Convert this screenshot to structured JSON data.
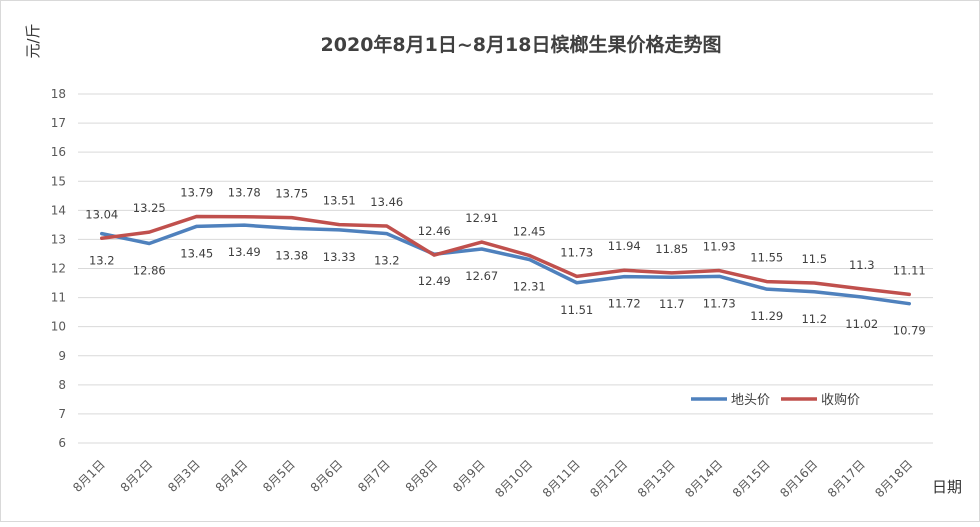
{
  "chart_data": {
    "type": "line",
    "title": "2020年8月1日~8月18日槟榔生果价格走势图",
    "ylabel": "元/斤",
    "xlabel": "日期",
    "ylim": [
      6,
      18
    ],
    "yticks": [
      6,
      7,
      8,
      9,
      10,
      11,
      12,
      13,
      14,
      15,
      16,
      17,
      18
    ],
    "grid": true,
    "legend_position": "bottom-right",
    "categories": [
      "8月1日",
      "8月2日",
      "8月3日",
      "8月4日",
      "8月5日",
      "8月6日",
      "8月7日",
      "8月8日",
      "8月9日",
      "8月10日",
      "8月11日",
      "8月12日",
      "8月13日",
      "8月14日",
      "8月15日",
      "8月16日",
      "8月17日",
      "8月18日"
    ],
    "series": [
      {
        "name": "地头价",
        "color": "#4f81bd",
        "label_position": "below",
        "values": [
          13.2,
          12.86,
          13.45,
          13.49,
          13.38,
          13.33,
          13.2,
          12.49,
          12.67,
          12.31,
          11.51,
          11.72,
          11.7,
          11.73,
          11.29,
          11.2,
          11.02,
          10.79
        ]
      },
      {
        "name": "收购价",
        "color": "#c0504d",
        "label_position": "above",
        "values": [
          13.04,
          13.25,
          13.79,
          13.78,
          13.75,
          13.51,
          13.46,
          12.46,
          12.91,
          12.45,
          11.73,
          11.94,
          11.85,
          11.93,
          11.55,
          11.5,
          11.3,
          11.11
        ]
      }
    ]
  }
}
